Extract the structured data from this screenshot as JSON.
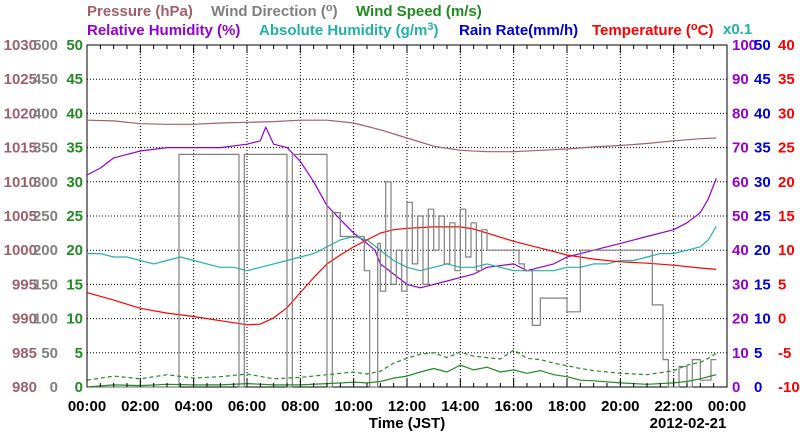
{
  "chart_data": {
    "type": "line",
    "date": "2012-02-21",
    "xlabel": "Time (JST)",
    "x_ticks": [
      "00:00",
      "02:00",
      "04:00",
      "06:00",
      "08:00",
      "10:00",
      "12:00",
      "14:00",
      "16:00",
      "18:00",
      "20:00",
      "22:00",
      "00:00"
    ],
    "x_minor_per_major": 4,
    "xlim": [
      0,
      24
    ],
    "grid": true,
    "titles": {
      "pressure": "Pressure (hPa)",
      "wind_dir": "Wind Direction (",
      "wind_dir_suffix": ")",
      "wind_speed": "Wind Speed (m/s)",
      "rh": "Relative Humidity (%)",
      "ah": "Absolute Humidity (g/m",
      "ah_suffix": ")",
      "rain": "Rain Rate(mm/h)",
      "temp": "Temperature (",
      "temp_suffix": "C)",
      "scale_note": "x0.1"
    },
    "colors": {
      "pressure": "#a0606a",
      "wind_dir": "#808080",
      "wind_speed": "#228b22",
      "rh": "#9400d3",
      "ah": "#20b2aa",
      "rain": "#0000dd",
      "temp": "#ff0000"
    },
    "axes": {
      "pressure": {
        "ylim": [
          980,
          1030
        ],
        "ticks": [
          "1030",
          "1025",
          "1020",
          "1015",
          "1010",
          "1005",
          "1000",
          "995",
          "990",
          "985",
          "980"
        ]
      },
      "wind_dir": {
        "ylim": [
          0,
          500
        ],
        "ticks": [
          "500",
          "450",
          "400",
          "350",
          "300",
          "250",
          "200",
          "150",
          "100",
          "50",
          "0"
        ]
      },
      "wind_speed": {
        "ylim": [
          0,
          50
        ],
        "ticks": [
          "50",
          "45",
          "40",
          "35",
          "30",
          "25",
          "20",
          "15",
          "10",
          "5",
          "0"
        ]
      },
      "rh": {
        "ylim": [
          0,
          100
        ],
        "ticks": [
          "100",
          "90",
          "80",
          "70",
          "60",
          "50",
          "40",
          "30",
          "20",
          "10",
          "0"
        ]
      },
      "rain": {
        "ylim": [
          0,
          50
        ],
        "ticks": [
          "50",
          "45",
          "40",
          "35",
          "30",
          "25",
          "20",
          "15",
          "10",
          "5",
          "0"
        ]
      },
      "temp": {
        "ylim": [
          -10,
          40
        ],
        "ticks": [
          "40",
          "35",
          "30",
          "25",
          "20",
          "15",
          "10",
          "5",
          "0",
          "-5",
          "-10"
        ]
      }
    },
    "series": [
      {
        "name": "Pressure",
        "axis": "pressure",
        "color": "#a0606a",
        "step": false,
        "x": [
          0,
          1,
          2,
          3,
          4,
          5,
          6,
          7,
          8,
          9,
          10,
          11,
          12,
          13,
          14,
          15,
          16,
          17,
          18,
          19,
          20,
          21,
          22,
          23,
          23.6
        ],
        "y": [
          1019.0,
          1018.9,
          1018.5,
          1018.4,
          1018.4,
          1018.6,
          1018.7,
          1018.8,
          1019.0,
          1019.0,
          1018.6,
          1017.6,
          1016.4,
          1015.2,
          1014.6,
          1014.4,
          1014.4,
          1014.6,
          1014.8,
          1015.1,
          1015.3,
          1015.6,
          1016.0,
          1016.3,
          1016.4
        ]
      },
      {
        "name": "Relative Humidity",
        "axis": "rh",
        "color": "#9400d3",
        "step": false,
        "x": [
          0,
          0.5,
          1,
          2,
          3,
          4,
          5,
          6,
          6.5,
          6.7,
          7,
          7.5,
          8,
          8.5,
          9,
          9.5,
          10,
          10.5,
          10.8,
          11,
          11.5,
          12,
          12.5,
          13,
          13.5,
          14,
          14.5,
          15,
          16,
          16.5,
          17,
          17.5,
          18,
          19,
          20,
          21,
          22,
          22.5,
          23,
          23.3,
          23.6
        ],
        "y": [
          62,
          64,
          67,
          69,
          70,
          70,
          70,
          71,
          72,
          76,
          71,
          70,
          66,
          60,
          53,
          49,
          45,
          42,
          40,
          36,
          33,
          30,
          29,
          30,
          31,
          32,
          33,
          35,
          36,
          34,
          35,
          36,
          38,
          40,
          42,
          44,
          46,
          48,
          51,
          55,
          61
        ]
      },
      {
        "name": "Absolute Humidity",
        "axis": "rh",
        "color": "#20b2aa",
        "step": false,
        "x": [
          0,
          0.5,
          1,
          1.5,
          2,
          2.5,
          3,
          3.5,
          4,
          4.5,
          5,
          5.5,
          6,
          6.5,
          7,
          7.5,
          8,
          8.5,
          9,
          9.5,
          10,
          10.5,
          11,
          11.5,
          12,
          12.5,
          13,
          13.5,
          14,
          14.5,
          15,
          15.5,
          16,
          16.5,
          17,
          17.5,
          18,
          18.5,
          19,
          19.5,
          20,
          20.5,
          21,
          21.5,
          22,
          22.5,
          23,
          23.3,
          23.6
        ],
        "y": [
          39,
          39,
          38,
          38,
          37,
          36,
          37,
          38,
          37,
          36,
          35,
          35,
          34,
          35,
          36,
          37,
          38,
          39,
          41,
          43,
          44,
          43,
          40,
          37,
          35,
          34,
          35,
          36,
          35,
          35,
          36,
          35,
          34,
          34,
          34,
          34,
          35,
          35,
          36,
          36,
          37,
          37,
          38,
          39,
          39,
          40,
          41,
          43,
          47
        ]
      },
      {
        "name": "Temperature",
        "axis": "temp",
        "color": "#ff0000",
        "step": false,
        "x": [
          0,
          1,
          2,
          3,
          4,
          5,
          5.5,
          6,
          6.5,
          7,
          7.5,
          8,
          8.5,
          9,
          9.5,
          10,
          10.5,
          11,
          11.5,
          12,
          13,
          14,
          14.5,
          15,
          16,
          17,
          18,
          19,
          20,
          21,
          22,
          23,
          23.6
        ],
        "y": [
          3.8,
          2.7,
          1.5,
          0.8,
          0.3,
          -0.3,
          -0.6,
          -0.9,
          -0.8,
          0.1,
          1.6,
          3.8,
          6.0,
          8.0,
          9.3,
          10.5,
          11.5,
          12.5,
          13.0,
          13.2,
          13.4,
          13.4,
          13.1,
          12.5,
          11.3,
          10.3,
          9.3,
          8.7,
          8.3,
          8.1,
          7.8,
          7.4,
          7.2
        ]
      },
      {
        "name": "Wind Direction",
        "axis": "wind_dir",
        "color": "#808080",
        "step": true,
        "x": [
          0,
          3.35,
          3.45,
          5.6,
          5.7,
          5.9,
          6.2,
          7.4,
          7.5,
          7.7,
          8.9,
          9.0,
          9.2,
          9.5,
          10.1,
          10.4,
          10.6,
          10.9,
          11.0,
          11.2,
          11.4,
          11.6,
          11.8,
          12.0,
          12.2,
          12.4,
          12.6,
          12.8,
          13.0,
          13.2,
          13.4,
          13.6,
          13.8,
          14.0,
          14.2,
          14.4,
          14.6,
          14.8,
          15.0,
          15.4,
          15.8,
          16.2,
          16.4,
          16.7,
          17.0,
          17.4,
          17.7,
          18.0,
          18.5,
          19.0,
          20.0,
          21.0,
          21.2,
          21.6,
          21.8,
          22.2,
          22.5,
          22.7,
          23.0,
          23.4,
          23.6
        ],
        "y": [
          0,
          0,
          340,
          340,
          0,
          340,
          340,
          340,
          0,
          340,
          340,
          0,
          255,
          220,
          220,
          170,
          0,
          210,
          140,
          300,
          150,
          200,
          140,
          270,
          180,
          250,
          150,
          260,
          200,
          250,
          180,
          240,
          170,
          260,
          190,
          240,
          170,
          230,
          200,
          200,
          200,
          180,
          170,
          90,
          130,
          130,
          130,
          110,
          200,
          200,
          200,
          200,
          120,
          40,
          0,
          30,
          0,
          40,
          10,
          40,
          40
        ]
      },
      {
        "name": "Wind Speed avg",
        "axis": "wind_speed",
        "color": "#228b22",
        "step": false,
        "x": [
          0,
          1,
          2,
          3,
          4,
          5,
          6,
          7,
          8,
          9,
          10,
          10.5,
          11,
          11.5,
          12,
          12.5,
          13,
          13.5,
          14,
          14.5,
          15,
          15.5,
          16,
          16.5,
          17,
          17.5,
          18,
          18.5,
          19,
          20,
          21,
          22,
          22.5,
          23,
          23.3,
          23.6
        ],
        "y": [
          0,
          0.3,
          0.2,
          0.4,
          0.3,
          0.3,
          0.5,
          0.3,
          0.3,
          0.5,
          0.7,
          0.6,
          0.8,
          1.3,
          1.6,
          2.2,
          2.7,
          2.2,
          3.2,
          2.5,
          2.9,
          2.2,
          2.5,
          2.0,
          2.4,
          1.8,
          1.5,
          1.0,
          0.9,
          0.6,
          0.4,
          0.6,
          0.8,
          1.2,
          1.5,
          1.8
        ]
      },
      {
        "name": "Wind Speed max",
        "axis": "wind_speed",
        "color": "#228b22",
        "step": false,
        "dashed": true,
        "x": [
          0,
          1,
          2,
          3,
          4,
          5,
          6,
          7,
          8,
          9,
          10,
          10.5,
          11,
          11.5,
          12,
          12.5,
          13,
          13.5,
          14,
          14.5,
          15,
          15.5,
          16,
          16.5,
          17,
          17.5,
          18,
          18.5,
          19,
          20,
          21,
          22,
          22.5,
          23,
          23.3,
          23.6
        ],
        "y": [
          1.0,
          1.6,
          1.2,
          1.8,
          1.3,
          1.5,
          1.9,
          1.2,
          1.4,
          1.8,
          2.2,
          1.9,
          2.3,
          3.5,
          4.2,
          4.8,
          5.0,
          4.3,
          5.1,
          4.5,
          4.3,
          4.1,
          5.4,
          4.2,
          4.0,
          3.5,
          3.1,
          2.7,
          2.4,
          2.0,
          1.8,
          2.4,
          3.2,
          3.6,
          4.2,
          4.9
        ]
      }
    ]
  }
}
